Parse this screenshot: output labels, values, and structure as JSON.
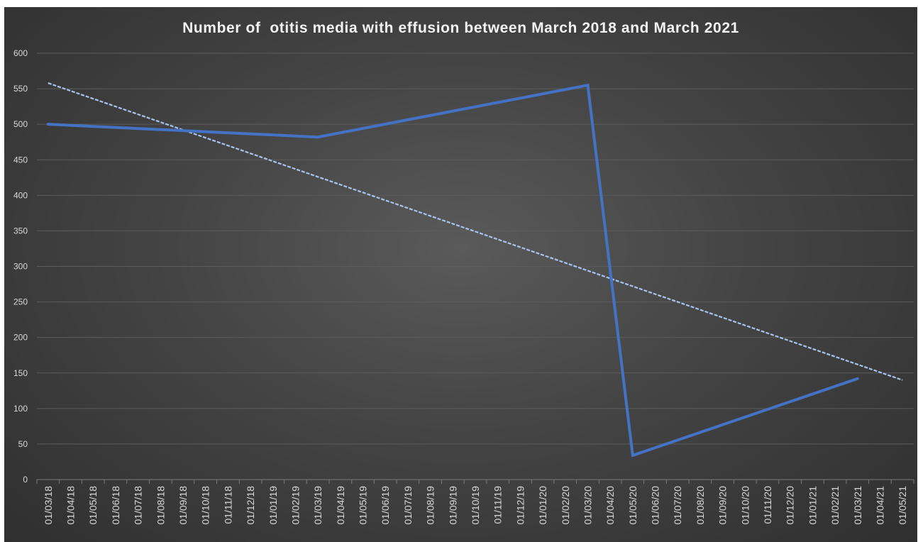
{
  "chart_data": {
    "type": "line",
    "title": "Number of  otitis media with effusion between March 2018 and March 2021",
    "xlabel": "",
    "ylabel": "",
    "ylim": [
      0,
      600
    ],
    "yticks": [
      0,
      50,
      100,
      150,
      200,
      250,
      300,
      350,
      400,
      450,
      500,
      550,
      600
    ],
    "grid": true,
    "legend": "none",
    "categories": [
      "01/03/18",
      "01/04/18",
      "01/05/18",
      "01/06/18",
      "01/07/18",
      "01/08/18",
      "01/09/18",
      "01/10/18",
      "01/11/18",
      "01/12/18",
      "01/01/19",
      "01/02/19",
      "01/03/19",
      "01/04/19",
      "01/05/19",
      "01/06/19",
      "01/07/19",
      "01/08/19",
      "01/09/19",
      "01/10/19",
      "01/11/19",
      "01/12/19",
      "01/01/20",
      "01/02/20",
      "01/03/20",
      "01/04/20",
      "01/05/20",
      "01/06/20",
      "01/07/20",
      "01/08/20",
      "01/09/20",
      "01/10/20",
      "01/11/20",
      "01/12/20",
      "01/01/21",
      "01/02/21",
      "01/03/21",
      "01/04/21",
      "01/05/21"
    ],
    "series": [
      {
        "style": "solid",
        "color": "#4472c4",
        "points": [
          {
            "x": "01/03/18",
            "y": 500
          },
          {
            "x": "01/03/19",
            "y": 482
          },
          {
            "x": "01/03/20",
            "y": 555
          },
          {
            "x": "01/05/20",
            "y": 34
          },
          {
            "x": "01/03/21",
            "y": 142
          }
        ]
      }
    ],
    "trendline": {
      "type": "linear",
      "style": "dashed",
      "color": "#a9c3ec",
      "points": [
        {
          "x": "01/03/18",
          "y": 558
        },
        {
          "x": "01/05/21",
          "y": 140
        }
      ]
    }
  }
}
